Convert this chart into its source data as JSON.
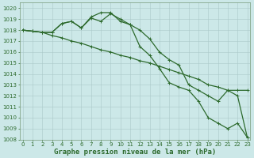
{
  "x": [
    0,
    1,
    2,
    3,
    4,
    5,
    6,
    7,
    8,
    9,
    10,
    11,
    12,
    13,
    14,
    15,
    16,
    17,
    18,
    19,
    20,
    21,
    22,
    23
  ],
  "series": [
    [
      1018.0,
      1017.9,
      1017.8,
      1017.8,
      1018.6,
      1018.8,
      1018.2,
      1019.2,
      1019.6,
      1019.6,
      1018.8,
      1018.5,
      1016.5,
      1015.7,
      1014.5,
      1013.2,
      1012.8,
      1012.5,
      1011.5,
      1010.0,
      1009.5,
      1009.0,
      1009.5,
      1008.2
    ],
    [
      1018.0,
      1017.9,
      1017.8,
      1017.8,
      1018.6,
      1018.8,
      1018.2,
      1019.1,
      1018.8,
      1019.5,
      1019.0,
      1018.5,
      1018.0,
      1017.2,
      1016.0,
      1015.3,
      1014.8,
      1013.0,
      1012.5,
      1012.0,
      1011.5,
      1012.5,
      1012.5,
      1012.5
    ],
    [
      1018.0,
      1017.9,
      1017.8,
      1017.5,
      1017.3,
      1017.0,
      1016.8,
      1016.5,
      1016.2,
      1016.0,
      1015.7,
      1015.5,
      1015.2,
      1015.0,
      1014.7,
      1014.4,
      1014.1,
      1013.8,
      1013.5,
      1013.0,
      1012.8,
      1012.5,
      1012.0,
      1008.2
    ]
  ],
  "line_color": "#2d6a2d",
  "line_width": 0.9,
  "marker": "+",
  "marker_size": 3,
  "marker_edge_width": 0.7,
  "xlabel": "Graphe pression niveau de la mer (hPa)",
  "ylim": [
    1008,
    1020.5
  ],
  "xlim": [
    -0.3,
    23.3
  ],
  "yticks": [
    1008,
    1009,
    1010,
    1011,
    1012,
    1013,
    1014,
    1015,
    1016,
    1017,
    1018,
    1019,
    1020
  ],
  "xticks": [
    0,
    1,
    2,
    3,
    4,
    5,
    6,
    7,
    8,
    9,
    10,
    11,
    12,
    13,
    14,
    15,
    16,
    17,
    18,
    19,
    20,
    21,
    22,
    23
  ],
  "bg_color": "#cce8e8",
  "grid_color": "#aac8c8",
  "xlabel_fontsize": 6.5,
  "tick_fontsize": 5.0
}
